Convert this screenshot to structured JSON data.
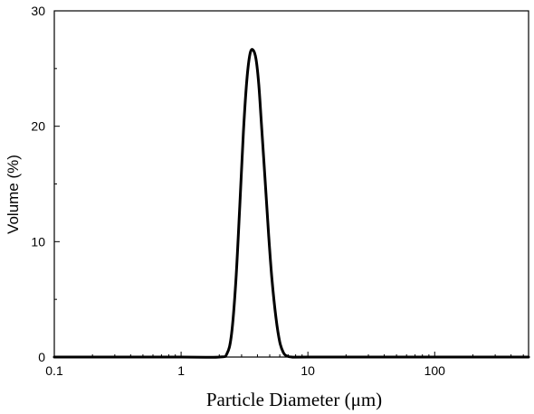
{
  "chart_data": {
    "type": "line",
    "title": "",
    "xlabel": "Particle Diameter (μm)",
    "ylabel": "Volume (%)",
    "xscale": "log",
    "xlim": [
      0.1,
      550
    ],
    "ylim": [
      0,
      30
    ],
    "xticks": [
      0.1,
      1,
      10,
      100
    ],
    "xtick_labels": [
      "0.1",
      "1",
      "10",
      "100"
    ],
    "yticks": [
      0,
      10,
      20,
      30
    ],
    "ytick_labels": [
      "0",
      "10",
      "20",
      "30"
    ],
    "grid": false,
    "legend": "none",
    "series": [
      {
        "color": "#000000",
        "x": [
          0.1,
          1,
          2.0,
          2.3,
          2.5,
          2.7,
          2.9,
          3.1,
          3.3,
          3.5,
          3.7,
          3.9,
          4.1,
          4.3,
          4.6,
          4.9,
          5.2,
          5.6,
          6.0,
          6.4,
          6.8,
          7.5,
          10,
          100,
          550
        ],
        "y": [
          0,
          0,
          0,
          0.3,
          2.0,
          6.5,
          13.0,
          19.5,
          24.0,
          26.3,
          26.6,
          25.8,
          23.6,
          20.2,
          15.3,
          10.6,
          6.8,
          3.4,
          1.3,
          0.4,
          0.1,
          0,
          0,
          0,
          0
        ]
      }
    ]
  }
}
